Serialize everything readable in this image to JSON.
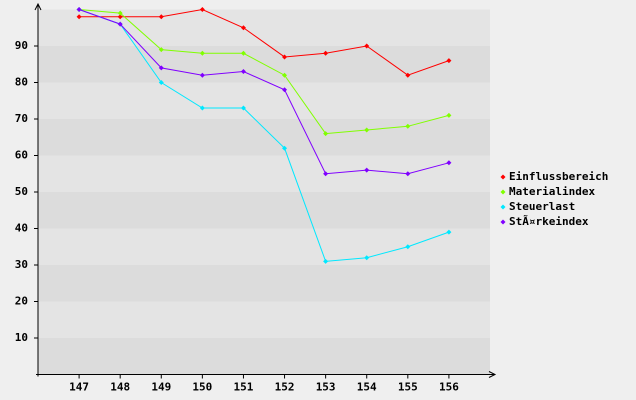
{
  "chart_data": {
    "type": "line",
    "categories": [
      "147",
      "148",
      "149",
      "150",
      "151",
      "152",
      "153",
      "154",
      "155",
      "156"
    ],
    "series": [
      {
        "name": "Einflussbereich",
        "color": "#ff0000",
        "values": [
          98,
          98,
          98,
          100,
          95,
          87,
          88,
          90,
          82,
          86
        ]
      },
      {
        "name": "Materialindex",
        "color": "#80ff00",
        "values": [
          100,
          99,
          89,
          88,
          88,
          82,
          66,
          67,
          68,
          71
        ]
      },
      {
        "name": "Steuerlast",
        "color": "#00e8ff",
        "values": [
          100,
          96,
          80,
          73,
          73,
          62,
          31,
          32,
          35,
          39
        ]
      },
      {
        "name": "StÃ¤rkeindex",
        "color": "#8000ff",
        "values": [
          100,
          96,
          84,
          82,
          83,
          78,
          55,
          56,
          55,
          58
        ]
      }
    ],
    "ylim": [
      0,
      100
    ],
    "yticks": [
      10,
      20,
      30,
      40,
      50,
      60,
      70,
      80,
      90
    ],
    "grid": true,
    "legend": "right"
  }
}
